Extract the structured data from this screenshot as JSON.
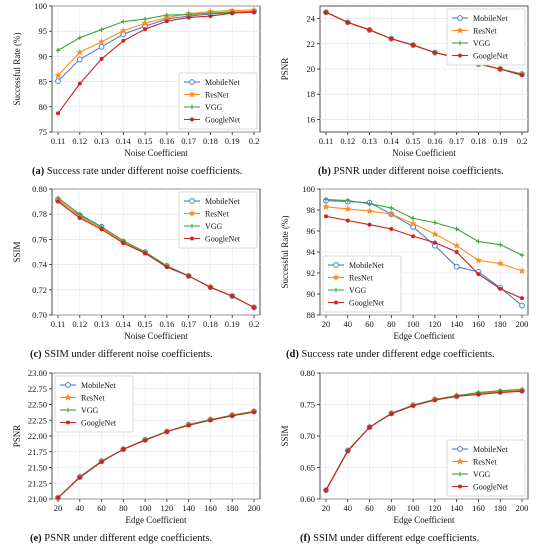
{
  "figure": {
    "captions": [
      {
        "tag": "(a)",
        "text": " Success rate under different noise coefficients."
      },
      {
        "tag": "(b)",
        "text": " PSNR under different noise coefficients."
      },
      {
        "tag": "(c)",
        "text": " SSIM under different noise coefficients."
      },
      {
        "tag": "(d)",
        "text": " Success rate under different edge coefficients."
      },
      {
        "tag": "(e)",
        "text": " PSNR under different edge coefficients."
      },
      {
        "tag": "(f)",
        "text": " SSIM under different edge coefficients."
      }
    ]
  },
  "colors": {
    "MobileNet": "#4a7fd1",
    "ResNet": "#ff8c1a",
    "VGG": "#3ea33e",
    "GoogleNet": "#cc2222"
  },
  "chart_data": [
    {
      "type": "line",
      "xlabel": "Noise Coefficient",
      "ylabel": "Successful Rate (%)",
      "x": [
        "0.11",
        "0.12",
        "0.13",
        "0.14",
        "0.15",
        "0.16",
        "0.17",
        "0.18",
        "0.19",
        "0.2"
      ],
      "ylim": [
        75,
        100
      ],
      "yticks": [
        75,
        80,
        85,
        90,
        95,
        100
      ],
      "legend": "bottom-right",
      "series": [
        {
          "name": "MobileNet",
          "values": [
            85.1,
            89.4,
            91.9,
            94.4,
            96.0,
            97.4,
            98.0,
            98.4,
            98.7,
            98.9
          ]
        },
        {
          "name": "ResNet",
          "values": [
            86.2,
            90.8,
            92.9,
            95.1,
            96.6,
            97.7,
            98.5,
            98.9,
            99.1,
            99.2
          ]
        },
        {
          "name": "VGG",
          "values": [
            91.2,
            93.7,
            95.3,
            96.9,
            97.4,
            98.2,
            98.3,
            98.6,
            98.8,
            98.9
          ]
        },
        {
          "name": "GoogleNet",
          "values": [
            78.7,
            84.6,
            89.5,
            93.1,
            95.4,
            97.0,
            97.7,
            98.0,
            98.6,
            98.8
          ]
        }
      ]
    },
    {
      "type": "line",
      "xlabel": "Noise Coefficient",
      "ylabel": "PSNR",
      "x": [
        "0.11",
        "0.12",
        "0.13",
        "0.14",
        "0.15",
        "0.16",
        "0.17",
        "0.18",
        "0.19",
        "0.2"
      ],
      "ylim": [
        15,
        25
      ],
      "yticks": [
        16,
        18,
        20,
        22,
        24
      ],
      "legend": "top-right",
      "series": [
        {
          "name": "MobileNet",
          "values": [
            24.5,
            23.7,
            23.1,
            22.4,
            21.9,
            21.3,
            20.9,
            20.4,
            20.0,
            19.6
          ]
        },
        {
          "name": "ResNet",
          "values": [
            24.5,
            23.7,
            23.1,
            22.4,
            21.9,
            21.3,
            20.9,
            20.4,
            20.0,
            19.6
          ]
        },
        {
          "name": "VGG",
          "values": [
            24.5,
            23.7,
            23.1,
            22.4,
            21.9,
            21.3,
            20.9,
            20.4,
            20.0,
            19.6
          ]
        },
        {
          "name": "GoogleNet",
          "values": [
            24.5,
            23.7,
            23.1,
            22.4,
            21.9,
            21.3,
            20.9,
            20.4,
            20.0,
            19.5
          ]
        }
      ]
    },
    {
      "type": "line",
      "xlabel": "Noise Coefficient",
      "ylabel": "SSIM",
      "x": [
        "0.11",
        "0.12",
        "0.13",
        "0.14",
        "0.15",
        "0.16",
        "0.17",
        "0.18",
        "0.19",
        "0.2"
      ],
      "ylim": [
        0.7,
        0.8
      ],
      "yticks": [
        0.7,
        0.72,
        0.74,
        0.76,
        0.78,
        0.8
      ],
      "legend": "top-right",
      "series": [
        {
          "name": "MobileNet",
          "values": [
            0.791,
            0.779,
            0.77,
            0.758,
            0.75,
            0.739,
            0.731,
            0.722,
            0.715,
            0.706
          ]
        },
        {
          "name": "ResNet",
          "values": [
            0.792,
            0.778,
            0.769,
            0.758,
            0.749,
            0.739,
            0.731,
            0.722,
            0.715,
            0.706
          ]
        },
        {
          "name": "VGG",
          "values": [
            0.793,
            0.78,
            0.77,
            0.759,
            0.75,
            0.739,
            0.731,
            0.722,
            0.715,
            0.706
          ]
        },
        {
          "name": "GoogleNet",
          "values": [
            0.79,
            0.777,
            0.768,
            0.757,
            0.749,
            0.738,
            0.731,
            0.722,
            0.715,
            0.706
          ]
        }
      ]
    },
    {
      "type": "line",
      "xlabel": "Edge Coefficient",
      "ylabel": "Successful Rate (%)",
      "x": [
        "20",
        "40",
        "60",
        "80",
        "100",
        "120",
        "140",
        "160",
        "180",
        "200"
      ],
      "ylim": [
        88,
        100
      ],
      "yticks": [
        88,
        90,
        92,
        94,
        96,
        98,
        100
      ],
      "legend": "bottom-left",
      "series": [
        {
          "name": "MobileNet",
          "values": [
            98.9,
            98.8,
            98.7,
            97.6,
            96.4,
            94.6,
            92.6,
            92.1,
            90.6,
            88.9
          ]
        },
        {
          "name": "ResNet",
          "values": [
            98.3,
            98.1,
            97.9,
            97.6,
            96.7,
            95.7,
            94.6,
            93.2,
            92.9,
            92.2
          ]
        },
        {
          "name": "VGG",
          "values": [
            99.0,
            98.9,
            98.6,
            98.2,
            97.2,
            96.8,
            96.2,
            95.0,
            94.7,
            93.7
          ]
        },
        {
          "name": "GoogleNet",
          "values": [
            97.4,
            97.0,
            96.6,
            96.2,
            95.5,
            94.9,
            94.0,
            91.9,
            90.5,
            89.6
          ]
        }
      ]
    },
    {
      "type": "line",
      "xlabel": "Edge Coefficient",
      "ylabel": "PSNR",
      "x": [
        "20",
        "40",
        "60",
        "80",
        "100",
        "120",
        "140",
        "160",
        "180",
        "200"
      ],
      "ylim": [
        21.0,
        23.0
      ],
      "yticks": [
        21.0,
        21.25,
        21.5,
        21.75,
        22.0,
        22.25,
        22.5,
        22.75,
        23.0
      ],
      "legend": "top-left",
      "series": [
        {
          "name": "MobileNet",
          "values": [
            21.02,
            21.35,
            21.6,
            21.79,
            21.94,
            22.07,
            22.18,
            22.26,
            22.33,
            22.39
          ]
        },
        {
          "name": "ResNet",
          "values": [
            21.02,
            21.35,
            21.6,
            21.79,
            21.94,
            22.07,
            22.18,
            22.26,
            22.33,
            22.39
          ]
        },
        {
          "name": "VGG",
          "values": [
            21.02,
            21.35,
            21.6,
            21.79,
            21.94,
            22.07,
            22.18,
            22.26,
            22.33,
            22.39
          ]
        },
        {
          "name": "GoogleNet",
          "values": [
            21.02,
            21.34,
            21.59,
            21.79,
            21.93,
            22.07,
            22.17,
            22.25,
            22.32,
            22.38
          ]
        }
      ]
    },
    {
      "type": "line",
      "xlabel": "Edge Coefficient",
      "ylabel": "SSIM",
      "x": [
        "20",
        "40",
        "60",
        "80",
        "100",
        "120",
        "140",
        "160",
        "180",
        "200"
      ],
      "ylim": [
        0.6,
        0.8
      ],
      "yticks": [
        0.6,
        0.65,
        0.7,
        0.75,
        0.8
      ],
      "legend": "bottom-right",
      "series": [
        {
          "name": "MobileNet",
          "values": [
            0.614,
            0.677,
            0.714,
            0.736,
            0.749,
            0.758,
            0.763,
            0.767,
            0.77,
            0.772
          ]
        },
        {
          "name": "ResNet",
          "values": [
            0.614,
            0.677,
            0.714,
            0.736,
            0.749,
            0.758,
            0.764,
            0.768,
            0.771,
            0.773
          ]
        },
        {
          "name": "VGG",
          "values": [
            0.614,
            0.677,
            0.714,
            0.736,
            0.749,
            0.758,
            0.764,
            0.769,
            0.772,
            0.774
          ]
        },
        {
          "name": "GoogleNet",
          "values": [
            0.614,
            0.676,
            0.714,
            0.735,
            0.748,
            0.757,
            0.763,
            0.766,
            0.769,
            0.771
          ]
        }
      ]
    }
  ]
}
